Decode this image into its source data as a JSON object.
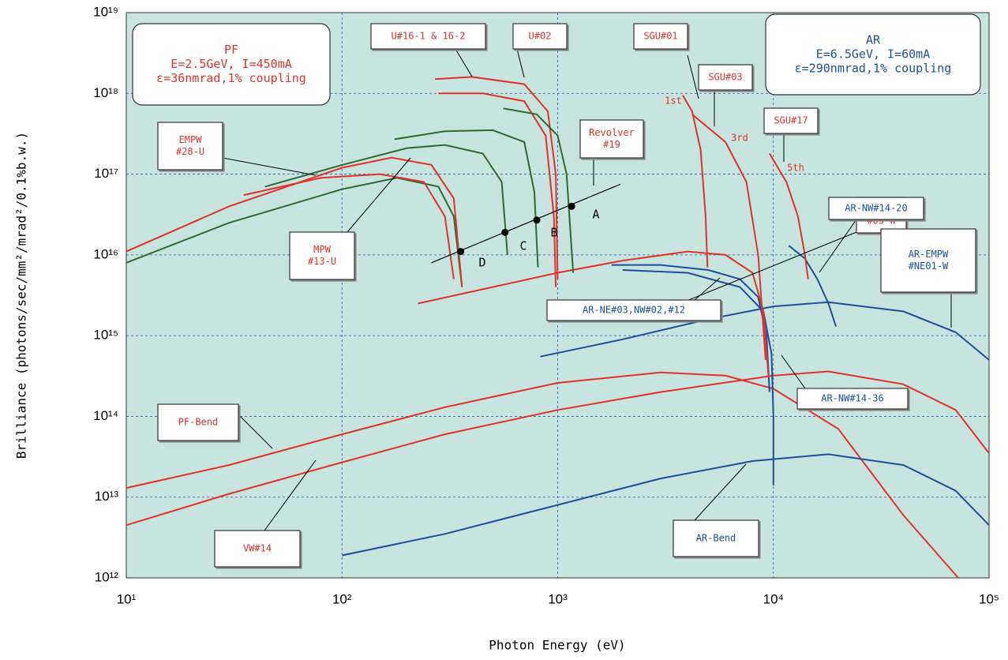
{
  "chart_data": {
    "type": "line",
    "xlabel": "Photon Energy (eV)",
    "ylabel": "Brilliance (photons/sec/mm²/mrad²/0.1%b.w.)",
    "xscale": "log",
    "yscale": "log",
    "grid": true,
    "xlim": [
      10,
      100000
    ],
    "ylim": [
      1000000000000.0,
      1e+19
    ],
    "xticks": [
      {
        "value": 10,
        "label": "10¹"
      },
      {
        "value": 100,
        "label": "10²"
      },
      {
        "value": 1000,
        "label": "10³"
      },
      {
        "value": 10000,
        "label": "10⁴"
      },
      {
        "value": 100000,
        "label": "10⁵"
      }
    ],
    "yticks": [
      {
        "value": 1000000000000.0,
        "label": "10¹²"
      },
      {
        "value": 10000000000000.0,
        "label": "10¹³"
      },
      {
        "value": 100000000000000.0,
        "label": "10¹⁴"
      },
      {
        "value": 1000000000000000.0,
        "label": "10¹⁵"
      },
      {
        "value": 1e+16,
        "label": "10¹⁶"
      },
      {
        "value": 1e+17,
        "label": "10¹⁷"
      },
      {
        "value": 1e+18,
        "label": "10¹⁸"
      },
      {
        "value": 1e+19,
        "label": "10¹⁹"
      }
    ],
    "series": [
      {
        "color": "#e0322a",
        "x": [
          10,
          30,
          100,
          300,
          1000,
          3000,
          6000,
          10000,
          20000,
          40000,
          72000
        ],
        "values": [
          13000000000000.0,
          25000000000000.0,
          60000000000000.0,
          130000000000000.0,
          260000000000000.0,
          350000000000000.0,
          320000000000000.0,
          220000000000000.0,
          70000000000000.0,
          6000000000000.0,
          1000000000000.0
        ]
      },
      {
        "color": "#e0322a",
        "x": [
          10,
          30,
          100,
          300,
          1000,
          3000,
          10000,
          18000,
          40000,
          70000,
          100000
        ],
        "values": [
          4500000000000.0,
          11000000000000.0,
          27000000000000.0,
          60000000000000.0,
          120000000000000.0,
          200000000000000.0,
          320000000000000.0,
          360000000000000.0,
          250000000000000.0,
          120000000000000.0,
          35000000000000.0
        ]
      },
      {
        "color": "#1c4f9c",
        "x": [
          100,
          300,
          1000,
          3000,
          8000,
          18000,
          40000,
          70000,
          100000
        ],
        "values": [
          1900000000000.0,
          3500000000000.0,
          8000000000000.0,
          17000000000000.0,
          28000000000000.0,
          34000000000000.0,
          25000000000000.0,
          12000000000000.0,
          4500000000000.0
        ]
      },
      {
        "color": "#1c4f9c",
        "x": [
          830,
          2000,
          5000,
          10000,
          18000,
          40000,
          70000,
          100000
        ],
        "values": [
          550000000000000.0,
          900000000000000.0,
          1600000000000000.0,
          2300000000000000.0,
          2600000000000000.0,
          2000000000000000.0,
          1100000000000000.0,
          500000000000000.0
        ]
      },
      {
        "color": "#1c4f9c",
        "x": [
          1780,
          3000,
          5000,
          7000,
          8500,
          9300,
          9600
        ],
        "values": [
          7500000000000000.0,
          7500000000000000.0,
          6500000000000000.0,
          5000000000000000.0,
          3000000000000000.0,
          1000000000000000.0,
          200000000000000.0
        ]
      },
      {
        "color": "#1c4f9c",
        "x": [
          2000,
          4000,
          7000,
          9000,
          9800,
          10000,
          10000
        ],
        "values": [
          6500000000000000.0,
          6000000000000000.0,
          4000000000000000.0,
          2000000000000000.0,
          600000000000000.0,
          100000000000000.0,
          14000000000000.0
        ]
      },
      {
        "color": "#1c4f9c",
        "x": [
          11800,
          14000,
          16000,
          18000,
          19500
        ],
        "values": [
          1.3e+16,
          9000000000000000.0,
          5000000000000000.0,
          2500000000000000.0,
          1300000000000000.0
        ]
      },
      {
        "color": "#e0322a",
        "x": [
          225,
          500,
          1000,
          2000,
          4000,
          6000,
          8000,
          9000,
          9500
        ],
        "values": [
          2500000000000000.0,
          4000000000000000.0,
          6000000000000000.0,
          8500000000000000.0,
          1.1e+16,
          1e+16,
          6000000000000000.0,
          2000000000000000.0,
          300000000000000.0
        ]
      },
      {
        "color": "#e0322a",
        "x": [
          3800,
          4200,
          4600,
          4850,
          4950
        ],
        "values": [
          9.5e+17,
          6e+17,
          2e+17,
          3e+16,
          7000000000000000.0
        ]
      },
      {
        "color": "#e0322a",
        "x": [
          4200,
          6000,
          7500,
          8500,
          9200
        ],
        "values": [
          5.5e+17,
          2.5e+17,
          8e+16,
          1e+16,
          500000000000000.0
        ]
      },
      {
        "color": "#e0322a",
        "x": [
          9600,
          11500,
          13000,
          14000,
          14500
        ],
        "values": [
          1.8e+17,
          8e+16,
          3e+16,
          1e+16,
          5000000000000000.0
        ]
      },
      {
        "color": "#e0322a",
        "x": [
          270,
          400,
          700,
          900,
          980,
          1000
        ],
        "values": [
          1.5e+18,
          1.6e+18,
          1.3e+18,
          6e+17,
          1e+17,
          5000000000000000.0
        ]
      },
      {
        "color": "#e0322a",
        "x": [
          280,
          450,
          700,
          880,
          960,
          980
        ],
        "values": [
          1e+18,
          1e+18,
          8e+17,
          3e+17,
          3e+16,
          4000000000000000.0
        ]
      },
      {
        "color": "#2e6b30",
        "x": [
          560,
          800,
          1000,
          1100,
          1180
        ],
        "values": [
          6.5e+17,
          5.5e+17,
          3e+17,
          1e+17,
          6000000000000000.0
        ]
      },
      {
        "color": "#2e6b30",
        "x": [
          175,
          300,
          500,
          700,
          780,
          810
        ],
        "values": [
          2.7e+17,
          3.4e+17,
          3.5e+17,
          2.5e+17,
          6e+16,
          7000000000000000.0
        ]
      },
      {
        "color": "#2e6b30",
        "x": [
          44,
          100,
          200,
          300,
          450,
          550,
          585
        ],
        "values": [
          7e+16,
          1.3e+17,
          2.1e+17,
          2.3e+17,
          1.8e+17,
          8e+16,
          1e+16
        ]
      },
      {
        "color": "#2e6b30",
        "x": [
          10,
          30,
          100,
          180,
          280,
          330,
          360
        ],
        "values": [
          8000000000000000.0,
          2.5e+16,
          6.5e+16,
          9e+16,
          7e+16,
          3e+16,
          4000000000000000.0
        ]
      },
      {
        "color": "#e0322a",
        "x": [
          10,
          30,
          100,
          170,
          260,
          330,
          360
        ],
        "values": [
          1.1e+16,
          4e+16,
          1.2e+17,
          1.6e+17,
          1.3e+17,
          5e+16,
          4000000000000000.0
        ]
      },
      {
        "color": "#e0322a",
        "x": [
          35,
          80,
          150,
          240,
          300,
          330
        ],
        "values": [
          5.5e+16,
          9e+16,
          1e+17,
          8e+16,
          3e+16,
          5000000000000000.0
        ]
      },
      {
        "color": "#000000",
        "x": [
          260,
          1950
        ],
        "values": [
          8000000000000000.0,
          7.5e+16
        ]
      },
      {
        "color": "#000000",
        "marker": true,
        "x": [
          355,
          570,
          800,
          1160
        ],
        "values": [
          1.1e+16,
          1.9e+16,
          2.7e+16,
          4e+16
        ],
        "point_labels": [
          "D",
          "C",
          "B",
          "A"
        ]
      }
    ],
    "annotations": [
      {
        "lines": [
          "PF",
          "E=2.5GeV, I=450mA",
          "ε=36nmrad,1% coupling"
        ],
        "color": "#e0322a"
      },
      {
        "lines": [
          "AR",
          "E=6.5GeV, I=60mA",
          "ε=290nmrad,1% coupling"
        ],
        "color": "#1c4f9c"
      },
      {
        "lines": [
          "U#16-1 & 16-2"
        ],
        "color": "#e0322a"
      },
      {
        "lines": [
          "U#02"
        ],
        "color": "#e0322a"
      },
      {
        "lines": [
          "SGU#01"
        ],
        "color": "#e0322a"
      },
      {
        "lines": [
          "SGU#03"
        ],
        "color": "#e0322a"
      },
      {
        "lines": [
          "SGU#17"
        ],
        "color": "#e0322a"
      },
      {
        "lines": [
          "MPW",
          "#05-W"
        ],
        "color": "#e0322a"
      },
      {
        "lines": [
          "Revolver",
          "#19"
        ],
        "color": "#e0322a"
      },
      {
        "lines": [
          "EMPW",
          "#28-U"
        ],
        "color": "#e0322a"
      },
      {
        "lines": [
          "MPW",
          "#13-U"
        ],
        "color": "#e0322a"
      },
      {
        "lines": [
          "AR-NW#14-20"
        ],
        "color": "#1c4f9c"
      },
      {
        "lines": [
          "AR-EMPW",
          "#NE01-W"
        ],
        "color": "#1c4f9c"
      },
      {
        "lines": [
          "AR-NE#03,NW#02,#12"
        ],
        "color": "#1c4f9c"
      },
      {
        "lines": [
          "AR-NW#14-36"
        ],
        "color": "#1c4f9c"
      },
      {
        "lines": [
          "PF-Bend"
        ],
        "color": "#e0322a"
      },
      {
        "lines": [
          "VW#14"
        ],
        "color": "#e0322a"
      },
      {
        "lines": [
          "AR-Bend"
        ],
        "color": "#1c4f9c"
      },
      {
        "lines": [
          "1st"
        ],
        "color": "#e0322a"
      },
      {
        "lines": [
          "3rd"
        ],
        "color": "#e0322a"
      },
      {
        "lines": [
          "5th"
        ],
        "color": "#e0322a"
      }
    ]
  }
}
